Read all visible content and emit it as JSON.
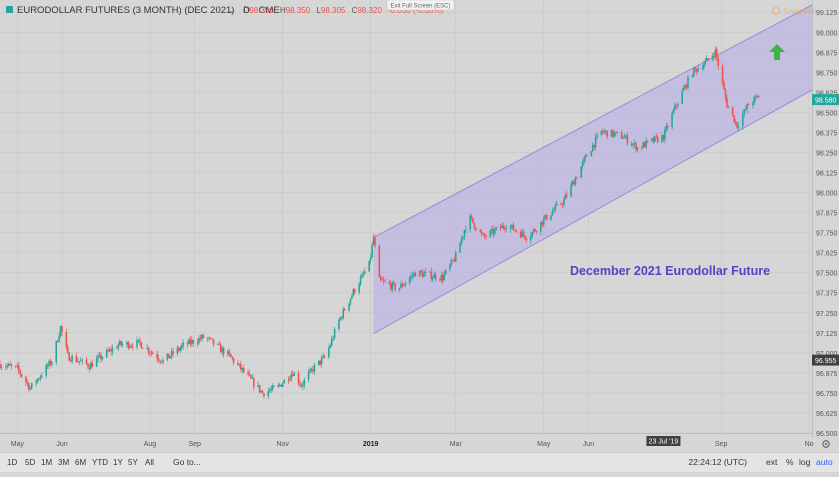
{
  "legend": {
    "symbol": "EURODOLLAR FUTURES (3 MONTH) (DEC 2021)",
    "interval": "D",
    "exchange": "CME",
    "o": "O",
    "o_val": "98.350",
    "h": "H",
    "h_val": "98.350",
    "l": "L",
    "l_val": "98.305",
    "c": "C",
    "c_val": "98.320",
    "change": "-0.030 (-0.03%)"
  },
  "exit_fullscreen": "Exit Full Screen (ESC)",
  "annotation": "December 2021 Eurodollar Future",
  "watermark": "Snapshot",
  "toolbar": {
    "ranges": [
      "1D",
      "5D",
      "1M",
      "3M",
      "6M",
      "YTD",
      "1Y",
      "5Y",
      "All"
    ],
    "goto": "Go to...",
    "time": "22:24:12 (UTC)",
    "ext": "ext",
    "percent": "%",
    "log": "log",
    "auto": "auto"
  },
  "colors": {
    "up": "#26a69a",
    "down": "#ef5350",
    "channel_fill": "#b7aee6",
    "channel_line": "#9b8ad8",
    "annotation": "#5b3fc4",
    "arrow": "#3fb249",
    "last_price_bg": "#26a69a",
    "marker_price_bg": "#404040"
  },
  "chart_data": {
    "type": "candlestick",
    "ylim": [
      96.5,
      99.17
    ],
    "y_ticks": [
      96.5,
      96.625,
      96.75,
      96.875,
      97.0,
      97.125,
      97.25,
      97.375,
      97.5,
      97.625,
      97.75,
      97.875,
      98.0,
      98.125,
      98.25,
      98.375,
      98.5,
      98.625,
      98.75,
      98.875,
      99.0,
      99.125
    ],
    "y_tick_labels": [
      "96.500",
      "96.625",
      "96.750",
      "96.875",
      "97.000",
      "97.125",
      "97.250",
      "97.375",
      "97.500",
      "97.625",
      "97.750",
      "97.875",
      "98.000",
      "98.125",
      "98.250",
      "98.375",
      "98.500",
      "98.625",
      "98.750",
      "98.875",
      "99.000",
      "99.125"
    ],
    "x_ticks": [
      {
        "label": "May",
        "date": "2018-05-01"
      },
      {
        "label": "Jun",
        "date": "2018-06-01"
      },
      {
        "label": "Aug",
        "date": "2018-08-01"
      },
      {
        "label": "Sep",
        "date": "2018-09-01"
      },
      {
        "label": "Nov",
        "date": "2018-11-01"
      },
      {
        "label": "2019",
        "date": "2019-01-01"
      },
      {
        "label": "Mar",
        "date": "2019-03-01"
      },
      {
        "label": "May",
        "date": "2019-05-01"
      },
      {
        "label": "Jun",
        "date": "2019-06-01"
      },
      {
        "label": "Sep",
        "date": "2019-09-01"
      },
      {
        "label": "No",
        "date": "2019-11-01"
      }
    ],
    "x_range": [
      "2018-04-19",
      "2019-11-03"
    ],
    "crosshair_date_label": "23 Jul '19",
    "crosshair_date": "2019-07-23",
    "last_price": 98.58,
    "last_price_label": "98.580",
    "marker_price": 96.955,
    "marker_price_label": "96.955",
    "price_path": [
      [
        "2018-04-19",
        96.93
      ],
      [
        "2018-05-01",
        96.9
      ],
      [
        "2018-05-10",
        96.78
      ],
      [
        "2018-05-25",
        96.95
      ],
      [
        "2018-05-31",
        97.16
      ],
      [
        "2018-06-05",
        96.98
      ],
      [
        "2018-06-20",
        96.92
      ],
      [
        "2018-07-10",
        97.05
      ],
      [
        "2018-07-25",
        97.06
      ],
      [
        "2018-08-10",
        96.95
      ],
      [
        "2018-08-25",
        97.05
      ],
      [
        "2018-09-08",
        97.1
      ],
      [
        "2018-09-25",
        96.98
      ],
      [
        "2018-10-05",
        96.88
      ],
      [
        "2018-10-18",
        96.75
      ],
      [
        "2018-10-28",
        96.78
      ],
      [
        "2018-11-08",
        96.88
      ],
      [
        "2018-11-14",
        96.8
      ],
      [
        "2018-11-22",
        96.9
      ],
      [
        "2018-12-01",
        96.98
      ],
      [
        "2018-12-10",
        97.2
      ],
      [
        "2018-12-20",
        97.38
      ],
      [
        "2018-12-31",
        97.55
      ],
      [
        "2019-01-03",
        97.72
      ],
      [
        "2019-01-07",
        97.45
      ],
      [
        "2019-01-20",
        97.4
      ],
      [
        "2019-02-01",
        97.5
      ],
      [
        "2019-02-20",
        97.47
      ],
      [
        "2019-03-01",
        97.6
      ],
      [
        "2019-03-10",
        97.85
      ],
      [
        "2019-03-20",
        97.72
      ],
      [
        "2019-04-05",
        97.8
      ],
      [
        "2019-04-20",
        97.72
      ],
      [
        "2019-05-01",
        97.83
      ],
      [
        "2019-05-15",
        97.95
      ],
      [
        "2019-06-01",
        98.25
      ],
      [
        "2019-06-10",
        98.38
      ],
      [
        "2019-06-25",
        98.35
      ],
      [
        "2019-07-05",
        98.28
      ],
      [
        "2019-07-23",
        98.35
      ],
      [
        "2019-08-01",
        98.55
      ],
      [
        "2019-08-12",
        98.75
      ],
      [
        "2019-08-22",
        98.82
      ],
      [
        "2019-08-28",
        98.88
      ],
      [
        "2019-09-05",
        98.55
      ],
      [
        "2019-09-12",
        98.42
      ],
      [
        "2019-09-20",
        98.55
      ],
      [
        "2019-09-27",
        98.6
      ]
    ],
    "channel": {
      "upper": [
        [
          "2019-01-03",
          97.72
        ],
        [
          "2019-11-03",
          99.17
        ]
      ],
      "lower": [
        [
          "2019-01-03",
          97.12
        ],
        [
          "2019-11-03",
          98.64
        ]
      ]
    }
  }
}
